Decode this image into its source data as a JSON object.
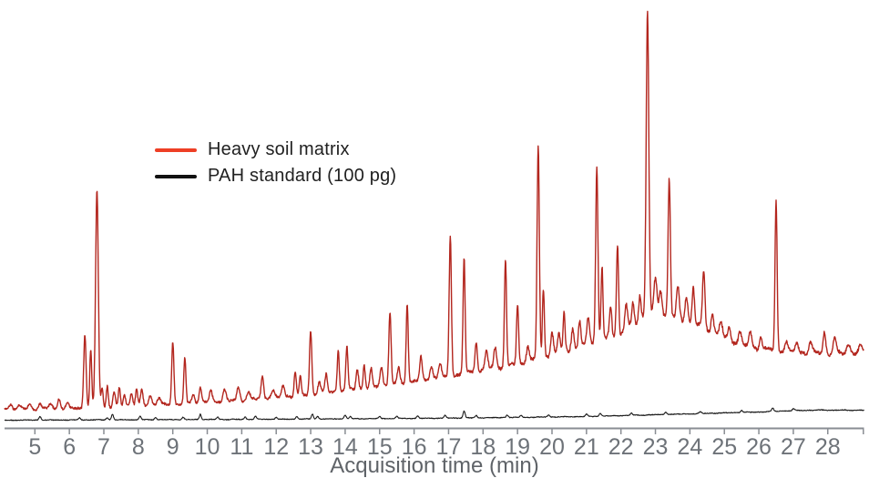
{
  "figure": {
    "background": "#ffffff"
  },
  "legend": {
    "items": [
      {
        "label": "Heavy soil matrix"
      },
      {
        "label": "PAH standard (100 pg)"
      }
    ]
  },
  "chart_data": {
    "type": "line",
    "title": "",
    "xlabel": "Acquisition time (min)",
    "ylabel": "",
    "x_range": [
      4.12,
      29.05
    ],
    "x_ticks": [
      5,
      6,
      7,
      8,
      9,
      10,
      11,
      12,
      13,
      14,
      15,
      16,
      17,
      18,
      19,
      20,
      21,
      22,
      23,
      24,
      25,
      26,
      27,
      28
    ],
    "grid": false,
    "legend_position": "upper-left-inset",
    "axis_color": "#898d93",
    "tick_label_color": "#6d7278",
    "axis_title_color": "#5f6368",
    "series": [
      {
        "name": "PAH standard (100 pg)",
        "color": "#1b1b1b",
        "legend_color": "#111111",
        "noise": 0.35,
        "wobble": 0.25,
        "seed": 7.3,
        "baseline": [
          [
            4.12,
            9
          ],
          [
            8,
            9.5
          ],
          [
            12,
            10
          ],
          [
            16,
            11
          ],
          [
            19,
            12
          ],
          [
            21,
            13
          ],
          [
            22,
            14
          ],
          [
            23,
            15
          ],
          [
            24,
            16
          ],
          [
            25,
            17
          ],
          [
            26,
            18
          ],
          [
            27,
            19.5
          ],
          [
            27.6,
            20
          ],
          [
            29.05,
            20
          ]
        ],
        "peaks": [
          [
            5.15,
            4,
            0.03
          ],
          [
            6.3,
            2.5,
            0.03
          ],
          [
            7.1,
            2.5,
            0.03
          ],
          [
            7.25,
            6,
            0.028
          ],
          [
            8.05,
            4,
            0.03
          ],
          [
            8.5,
            2.5,
            0.03
          ],
          [
            9.3,
            2.5,
            0.03
          ],
          [
            9.8,
            6,
            0.028
          ],
          [
            10.3,
            2.5,
            0.03
          ],
          [
            11.1,
            2.5,
            0.03
          ],
          [
            11.4,
            3.5,
            0.03
          ],
          [
            12.0,
            2.5,
            0.03
          ],
          [
            12.6,
            3,
            0.03
          ],
          [
            13.05,
            5.5,
            0.028
          ],
          [
            13.2,
            3,
            0.03
          ],
          [
            14.0,
            4,
            0.03
          ],
          [
            14.15,
            2.5,
            0.03
          ],
          [
            15.0,
            2,
            0.03
          ],
          [
            15.5,
            2.5,
            0.03
          ],
          [
            16.1,
            2.5,
            0.03
          ],
          [
            16.9,
            3,
            0.03
          ],
          [
            17.45,
            7.5,
            0.03
          ],
          [
            17.8,
            2.5,
            0.03
          ],
          [
            18.7,
            3,
            0.03
          ],
          [
            19.1,
            2.5,
            0.03
          ],
          [
            19.9,
            2.5,
            0.03
          ],
          [
            21.0,
            2.5,
            0.03
          ],
          [
            21.4,
            3,
            0.03
          ],
          [
            22.3,
            2.5,
            0.03
          ],
          [
            23.3,
            2.5,
            0.03
          ],
          [
            24.3,
            2,
            0.03
          ],
          [
            25.5,
            2.5,
            0.03
          ],
          [
            26.4,
            3.5,
            0.03
          ],
          [
            27.0,
            2,
            0.03
          ]
        ]
      },
      {
        "name": "Heavy soil matrix",
        "color": "#b3261e",
        "legend_color": "#ee3f25",
        "noise": 0.9,
        "wobble": 1.0,
        "seed": 2.1,
        "baseline": [
          [
            4.12,
            21
          ],
          [
            5,
            21
          ],
          [
            6,
            22
          ],
          [
            7,
            22.5
          ],
          [
            8,
            25
          ],
          [
            9,
            26
          ],
          [
            10,
            29
          ],
          [
            11,
            31
          ],
          [
            12,
            34
          ],
          [
            13,
            37
          ],
          [
            14,
            42
          ],
          [
            15,
            46
          ],
          [
            16,
            52
          ],
          [
            17,
            57
          ],
          [
            18,
            64
          ],
          [
            19,
            71
          ],
          [
            19.5,
            75
          ],
          [
            20,
            81
          ],
          [
            20.5,
            85
          ],
          [
            21,
            92
          ],
          [
            21.5,
            97
          ],
          [
            22,
            104
          ],
          [
            22.4,
            114
          ],
          [
            22.7,
            122
          ],
          [
            23,
            126
          ],
          [
            23.3,
            124
          ],
          [
            23.6,
            121
          ],
          [
            24,
            117
          ],
          [
            24.4,
            111
          ],
          [
            24.8,
            103
          ],
          [
            25.2,
            96
          ],
          [
            25.6,
            91
          ],
          [
            26,
            88
          ],
          [
            26.5,
            86
          ],
          [
            27,
            84
          ],
          [
            27.5,
            83
          ],
          [
            28,
            82
          ],
          [
            28.5,
            82
          ],
          [
            29.05,
            84
          ]
        ],
        "peaks": [
          [
            4.3,
            6,
            0.05
          ],
          [
            4.55,
            4,
            0.05
          ],
          [
            4.85,
            5,
            0.05
          ],
          [
            5.15,
            6,
            0.04
          ],
          [
            5.45,
            5,
            0.05
          ],
          [
            5.7,
            11,
            0.04
          ],
          [
            5.95,
            5,
            0.04
          ],
          [
            6.45,
            81,
            0.035
          ],
          [
            6.62,
            64,
            0.028
          ],
          [
            6.8,
            240,
            0.04
          ],
          [
            6.95,
            22,
            0.03
          ],
          [
            7.1,
            24,
            0.03
          ],
          [
            7.3,
            16,
            0.035
          ],
          [
            7.45,
            21,
            0.03
          ],
          [
            7.6,
            13,
            0.035
          ],
          [
            7.8,
            15,
            0.035
          ],
          [
            7.95,
            19,
            0.03
          ],
          [
            8.1,
            17,
            0.035
          ],
          [
            8.35,
            11,
            0.045
          ],
          [
            8.6,
            8,
            0.05
          ],
          [
            9.0,
            70,
            0.032
          ],
          [
            9.35,
            50,
            0.03
          ],
          [
            9.6,
            10,
            0.04
          ],
          [
            9.8,
            17,
            0.035
          ],
          [
            10.1,
            12,
            0.04
          ],
          [
            10.5,
            13,
            0.045
          ],
          [
            10.9,
            14,
            0.04
          ],
          [
            11.2,
            8,
            0.05
          ],
          [
            11.6,
            24,
            0.035
          ],
          [
            11.9,
            8,
            0.05
          ],
          [
            12.2,
            12,
            0.04
          ],
          [
            12.55,
            26,
            0.032
          ],
          [
            12.7,
            20,
            0.03
          ],
          [
            13.0,
            70,
            0.033
          ],
          [
            13.25,
            14,
            0.04
          ],
          [
            13.45,
            20,
            0.035
          ],
          [
            13.8,
            44,
            0.03
          ],
          [
            14.05,
            48,
            0.03
          ],
          [
            14.35,
            22,
            0.035
          ],
          [
            14.55,
            26,
            0.03
          ],
          [
            14.75,
            20,
            0.035
          ],
          [
            15.05,
            22,
            0.04
          ],
          [
            15.3,
            81,
            0.033
          ],
          [
            15.55,
            16,
            0.04
          ],
          [
            15.8,
            86,
            0.03
          ],
          [
            16.2,
            24,
            0.035
          ],
          [
            16.5,
            14,
            0.04
          ],
          [
            16.75,
            16,
            0.04
          ],
          [
            17.05,
            153,
            0.033
          ],
          [
            17.45,
            127,
            0.03
          ],
          [
            17.8,
            33,
            0.035
          ],
          [
            18.1,
            20,
            0.04
          ],
          [
            18.35,
            22,
            0.04
          ],
          [
            18.65,
            116,
            0.03
          ],
          [
            19.0,
            64,
            0.03
          ],
          [
            19.3,
            18,
            0.04
          ],
          [
            19.6,
            232,
            0.033
          ],
          [
            19.75,
            76,
            0.028
          ],
          [
            20.0,
            24,
            0.04
          ],
          [
            20.2,
            20,
            0.04
          ],
          [
            20.35,
            44,
            0.03
          ],
          [
            20.6,
            24,
            0.04
          ],
          [
            20.8,
            27,
            0.035
          ],
          [
            21.05,
            30,
            0.04
          ],
          [
            21.3,
            192,
            0.033
          ],
          [
            21.45,
            80,
            0.028
          ],
          [
            21.7,
            34,
            0.035
          ],
          [
            21.9,
            100,
            0.03
          ],
          [
            22.15,
            28,
            0.04
          ],
          [
            22.35,
            26,
            0.035
          ],
          [
            22.55,
            30,
            0.035
          ],
          [
            22.77,
            338,
            0.038
          ],
          [
            23.0,
            38,
            0.045
          ],
          [
            23.15,
            28,
            0.04
          ],
          [
            23.4,
            152,
            0.033
          ],
          [
            23.65,
            34,
            0.04
          ],
          [
            23.9,
            28,
            0.04
          ],
          [
            24.1,
            38,
            0.035
          ],
          [
            24.4,
            62,
            0.035
          ],
          [
            24.65,
            20,
            0.04
          ],
          [
            24.9,
            16,
            0.045
          ],
          [
            25.15,
            14,
            0.04
          ],
          [
            25.45,
            12,
            0.045
          ],
          [
            25.75,
            16,
            0.04
          ],
          [
            26.05,
            14,
            0.035
          ],
          [
            26.5,
            164,
            0.03
          ],
          [
            26.8,
            11,
            0.04
          ],
          [
            27.1,
            9,
            0.05
          ],
          [
            27.5,
            11,
            0.05
          ],
          [
            27.9,
            23,
            0.04
          ],
          [
            28.2,
            19,
            0.04
          ],
          [
            28.6,
            11,
            0.05
          ],
          [
            28.95,
            7,
            0.05
          ]
        ]
      }
    ]
  }
}
